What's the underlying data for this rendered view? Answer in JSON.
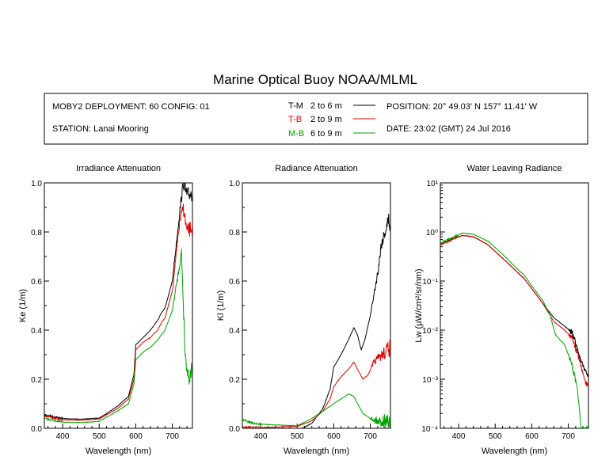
{
  "title": "Marine Optical Buoy NOAA/MLML",
  "header": {
    "deployment": "MOBY2 DEPLOYMENT: 60 CONFIG: 01",
    "station": "STATION: Lanai Mooring",
    "position": "POSITION: 20° 49.03' N   157° 11.41' W",
    "date": "DATE: 23:02 (GMT) 24 Jul 2016"
  },
  "legend": [
    {
      "code": "T-M",
      "range": "2 to 6  m",
      "color": "#000000"
    },
    {
      "code": "T-B",
      "range": "2 to 9  m",
      "color": "#dd0000"
    },
    {
      "code": "M-B",
      "range": "6 to 9  m",
      "color": "#00a000"
    }
  ],
  "chart_data": [
    {
      "type": "line",
      "title": "Irradiance Attenuation",
      "xlabel": "Wavelength (nm)",
      "ylabel": "Ke  (1/m)",
      "xlim": [
        350,
        755
      ],
      "ylim": [
        0,
        1.0
      ],
      "xticks": [
        "400",
        "500",
        "600",
        "700"
      ],
      "yticks": [
        "0.0",
        "0.2",
        "0.4",
        "0.6",
        "0.8",
        "1.0"
      ],
      "series": [
        {
          "code": "T-M",
          "color": "#000000",
          "points": [
            [
              350,
              0.055
            ],
            [
              400,
              0.04
            ],
            [
              450,
              0.037
            ],
            [
              500,
              0.042
            ],
            [
              520,
              0.06
            ],
            [
              550,
              0.09
            ],
            [
              580,
              0.13
            ],
            [
              595,
              0.22
            ],
            [
              600,
              0.34
            ],
            [
              620,
              0.37
            ],
            [
              640,
              0.4
            ],
            [
              660,
              0.44
            ],
            [
              670,
              0.47
            ],
            [
              680,
              0.49
            ],
            [
              700,
              0.6
            ],
            [
              720,
              0.88
            ],
            [
              730,
              1.0
            ],
            [
              740,
              0.95
            ],
            [
              755,
              0.96
            ]
          ]
        },
        {
          "code": "T-B",
          "color": "#dd0000",
          "points": [
            [
              350,
              0.05
            ],
            [
              400,
              0.035
            ],
            [
              450,
              0.032
            ],
            [
              500,
              0.038
            ],
            [
              520,
              0.055
            ],
            [
              550,
              0.08
            ],
            [
              580,
              0.12
            ],
            [
              595,
              0.2
            ],
            [
              600,
              0.32
            ],
            [
              620,
              0.35
            ],
            [
              640,
              0.37
            ],
            [
              660,
              0.4
            ],
            [
              670,
              0.43
            ],
            [
              680,
              0.45
            ],
            [
              700,
              0.56
            ],
            [
              720,
              0.84
            ],
            [
              730,
              0.9
            ],
            [
              740,
              0.8
            ],
            [
              755,
              0.82
            ]
          ]
        },
        {
          "code": "M-B",
          "color": "#00a000",
          "points": [
            [
              350,
              0.04
            ],
            [
              400,
              0.025
            ],
            [
              450,
              0.023
            ],
            [
              500,
              0.028
            ],
            [
              520,
              0.045
            ],
            [
              550,
              0.07
            ],
            [
              580,
              0.1
            ],
            [
              595,
              0.18
            ],
            [
              600,
              0.28
            ],
            [
              620,
              0.31
            ],
            [
              640,
              0.33
            ],
            [
              660,
              0.36
            ],
            [
              670,
              0.38
            ],
            [
              680,
              0.4
            ],
            [
              700,
              0.48
            ],
            [
              715,
              0.62
            ],
            [
              725,
              0.72
            ],
            [
              735,
              0.3
            ],
            [
              745,
              0.2
            ],
            [
              755,
              0.25
            ]
          ]
        }
      ]
    },
    {
      "type": "line",
      "title": "Radiance Attenuation",
      "xlabel": "Wavelength (nm)",
      "ylabel": "Kl  (1/m)",
      "xlim": [
        350,
        755
      ],
      "ylim": [
        0,
        1.0
      ],
      "xticks": [
        "400",
        "500",
        "600",
        "700"
      ],
      "yticks": [
        "0.0",
        "0.2",
        "0.4",
        "0.6",
        "0.8",
        "1.0"
      ],
      "series": [
        {
          "code": "T-M",
          "color": "#000000",
          "points": [
            [
              350,
              -0.01
            ],
            [
              400,
              -0.01
            ],
            [
              500,
              -0.01
            ],
            [
              540,
              0.02
            ],
            [
              570,
              0.08
            ],
            [
              590,
              0.16
            ],
            [
              600,
              0.25
            ],
            [
              620,
              0.3
            ],
            [
              640,
              0.36
            ],
            [
              655,
              0.41
            ],
            [
              665,
              0.38
            ],
            [
              675,
              0.32
            ],
            [
              685,
              0.36
            ],
            [
              700,
              0.46
            ],
            [
              720,
              0.63
            ],
            [
              730,
              0.75
            ],
            [
              740,
              0.8
            ],
            [
              750,
              0.85
            ],
            [
              755,
              0.82
            ]
          ]
        },
        {
          "code": "T-B",
          "color": "#dd0000",
          "points": [
            [
              350,
              0.005
            ],
            [
              400,
              0.003
            ],
            [
              500,
              0.008
            ],
            [
              540,
              0.03
            ],
            [
              570,
              0.07
            ],
            [
              590,
              0.12
            ],
            [
              600,
              0.17
            ],
            [
              620,
              0.21
            ],
            [
              640,
              0.24
            ],
            [
              655,
              0.27
            ],
            [
              665,
              0.24
            ],
            [
              680,
              0.2
            ],
            [
              695,
              0.22
            ],
            [
              710,
              0.27
            ],
            [
              725,
              0.29
            ],
            [
              740,
              0.31
            ],
            [
              755,
              0.33
            ]
          ]
        },
        {
          "code": "M-B",
          "color": "#00a000",
          "points": [
            [
              350,
              0.035
            ],
            [
              380,
              0.02
            ],
            [
              420,
              0.015
            ],
            [
              500,
              0.01
            ],
            [
              540,
              0.04
            ],
            [
              570,
              0.07
            ],
            [
              590,
              0.09
            ],
            [
              600,
              0.1
            ],
            [
              620,
              0.12
            ],
            [
              640,
              0.14
            ],
            [
              655,
              0.13
            ],
            [
              665,
              0.1
            ],
            [
              680,
              0.06
            ],
            [
              700,
              0.04
            ],
            [
              720,
              0.03
            ],
            [
              740,
              0.03
            ],
            [
              755,
              0.03
            ]
          ]
        }
      ]
    },
    {
      "type": "line",
      "title": "Water Leaving Radiance",
      "xlabel": "Wavelength (nm)",
      "ylabel": "Lw  (µW/cm²/sr/nm)",
      "xlim": [
        350,
        755
      ],
      "ylim": [
        0.0001,
        10
      ],
      "yscale": "log",
      "xticks": [
        "400",
        "500",
        "600",
        "700"
      ],
      "yticks": [
        "10⁻⁴",
        "10⁻³",
        "10⁻²",
        "10⁻¹",
        "10⁰",
        "10¹"
      ],
      "series": [
        {
          "code": "T-M",
          "color": "#000000",
          "points": [
            [
              350,
              0.55
            ],
            [
              380,
              0.7
            ],
            [
              410,
              0.85
            ],
            [
              440,
              0.8
            ],
            [
              480,
              0.55
            ],
            [
              500,
              0.4
            ],
            [
              530,
              0.25
            ],
            [
              550,
              0.18
            ],
            [
              580,
              0.11
            ],
            [
              600,
              0.07
            ],
            [
              630,
              0.035
            ],
            [
              660,
              0.018
            ],
            [
              690,
              0.012
            ],
            [
              710,
              0.009
            ],
            [
              730,
              0.003
            ],
            [
              745,
              0.0015
            ],
            [
              755,
              0.0012
            ]
          ]
        },
        {
          "code": "T-B",
          "color": "#dd0000",
          "points": [
            [
              350,
              0.55
            ],
            [
              380,
              0.7
            ],
            [
              410,
              0.85
            ],
            [
              440,
              0.8
            ],
            [
              480,
              0.55
            ],
            [
              500,
              0.4
            ],
            [
              530,
              0.25
            ],
            [
              550,
              0.18
            ],
            [
              580,
              0.11
            ],
            [
              600,
              0.07
            ],
            [
              630,
              0.035
            ],
            [
              660,
              0.015
            ],
            [
              690,
              0.01
            ],
            [
              710,
              0.007
            ],
            [
              730,
              0.0025
            ],
            [
              745,
              0.0009
            ],
            [
              755,
              0.0007
            ]
          ]
        },
        {
          "code": "M-B",
          "color": "#00a000",
          "points": [
            [
              350,
              0.6
            ],
            [
              380,
              0.75
            ],
            [
              410,
              0.95
            ],
            [
              440,
              0.9
            ],
            [
              480,
              0.65
            ],
            [
              500,
              0.48
            ],
            [
              530,
              0.3
            ],
            [
              550,
              0.21
            ],
            [
              580,
              0.13
            ],
            [
              600,
              0.08
            ],
            [
              630,
              0.04
            ],
            [
              650,
              0.02
            ],
            [
              665,
              0.008
            ],
            [
              690,
              0.005
            ],
            [
              710,
              0.002
            ],
            [
              725,
              0.0006
            ],
            [
              735,
              0.0001
            ]
          ]
        }
      ]
    }
  ]
}
